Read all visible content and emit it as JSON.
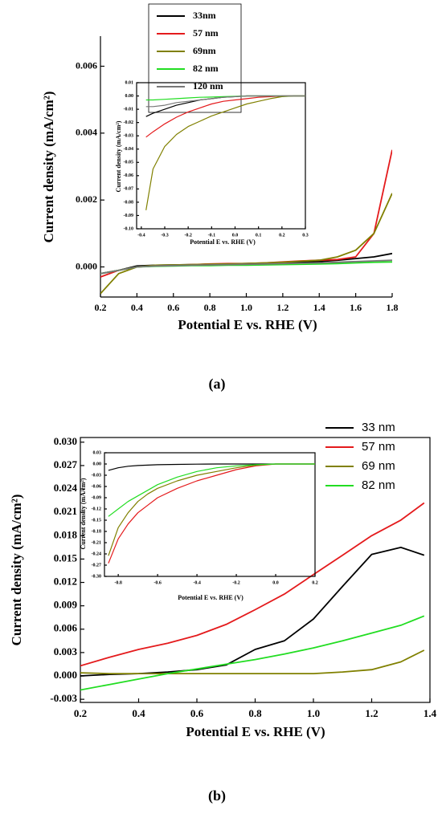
{
  "chart_data": [
    {
      "type": "line",
      "caption": "(a)",
      "xlabel": "Potential E vs. RHE (V)",
      "ylabel": "Current density (mA/cm²)",
      "legend": "upper center",
      "xlim": [
        0.2,
        1.8
      ],
      "ylim": [
        -0.0009,
        0.0069
      ],
      "xticks": [
        0.2,
        0.4,
        0.6,
        0.8,
        {
          "value": 1,
          "label": "1.0"
        },
        1.2,
        1.4,
        1.6,
        1.8
      ],
      "yticks": [
        {
          "value": 0,
          "label": "0.000"
        },
        0.002,
        0.004,
        0.006
      ],
      "x": [
        0.2,
        0.3,
        0.4,
        0.5,
        0.6,
        0.7,
        0.8,
        0.9,
        1.0,
        1.1,
        1.2,
        1.3,
        1.4,
        1.5,
        1.6,
        1.7,
        1.8
      ],
      "series": [
        {
          "name": "33nm",
          "color": "#000000",
          "values": [
            -0.0002,
            -0.0001,
            3e-05,
            5e-05,
            6e-05,
            7e-05,
            8e-05,
            9e-05,
            0.0001,
            0.00011,
            0.00012,
            0.00014,
            0.00016,
            0.0002,
            0.00025,
            0.0003,
            0.0004
          ]
        },
        {
          "name": "57 nm",
          "color": "#e41a1c",
          "values": [
            -0.0003,
            -0.0001,
            0.0,
            3e-05,
            5e-05,
            7e-05,
            9e-05,
            0.0001,
            0.0001,
            0.00012,
            0.00015,
            0.00018,
            0.0002,
            0.00022,
            0.0003,
            0.001,
            0.0035
          ]
        },
        {
          "name": "69nm",
          "color": "#808000",
          "values": [
            -0.0008,
            -0.0002,
            0.0,
            5e-05,
            6e-05,
            7e-05,
            8e-05,
            9e-05,
            0.0001,
            0.00012,
            0.00014,
            0.00017,
            0.0002,
            0.0003,
            0.0005,
            0.001,
            0.0022
          ]
        },
        {
          "name": "82 nm",
          "color": "#22dd22",
          "values": [
            -0.0002,
            -0.0001,
            0.0,
            2e-05,
            3e-05,
            4e-05,
            4e-05,
            5e-05,
            5e-05,
            6e-05,
            7e-05,
            8e-05,
            9e-05,
            0.0001,
            0.00012,
            0.00014,
            0.00015
          ]
        },
        {
          "name": "120 nm",
          "color": "#777777",
          "values": [
            -0.0002,
            -0.0001,
            0.0,
            3e-05,
            4e-05,
            5e-05,
            6e-05,
            7e-05,
            8e-05,
            9e-05,
            0.0001,
            0.00011,
            0.00012,
            0.00014,
            0.00016,
            0.00018,
            0.0002
          ]
        }
      ]
    },
    {
      "type": "line",
      "xlabel": "Potential E vs. RHE (V)",
      "ylabel": "Current density (mA/cm²)",
      "xlim": [
        -0.42,
        0.3
      ],
      "ylim": [
        -0.1,
        0.01
      ],
      "xticks": [
        -0.4,
        -0.3,
        -0.2,
        -0.1,
        {
          "value": 0,
          "label": "0.0"
        },
        0.1,
        0.2,
        0.3
      ],
      "yticks": [
        0.01,
        {
          "value": 0,
          "label": "0.00"
        },
        -0.01,
        -0.02,
        -0.03,
        -0.04,
        -0.05,
        -0.06,
        -0.07,
        -0.08,
        -0.09,
        {
          "value": -0.1,
          "label": "-0.10"
        }
      ],
      "x": [
        -0.38,
        -0.35,
        -0.3,
        -0.25,
        -0.2,
        -0.15,
        -0.1,
        -0.05,
        0,
        0.05,
        0.1,
        0.15,
        0.2,
        0.25,
        0.3
      ],
      "series": [
        {
          "color": "#000000",
          "values": [
            -0.0155,
            -0.013,
            -0.01,
            -0.007,
            -0.005,
            -0.003,
            -0.002,
            -0.001,
            -0.0005,
            0,
            0,
            0,
            0,
            0,
            0
          ]
        },
        {
          "color": "#e41a1c",
          "values": [
            -0.031,
            -0.027,
            -0.021,
            -0.016,
            -0.012,
            -0.009,
            -0.006,
            -0.004,
            -0.003,
            -0.002,
            -0.001,
            -0.0005,
            0,
            0,
            0
          ]
        },
        {
          "color": "#808000",
          "values": [
            -0.086,
            -0.055,
            -0.038,
            -0.029,
            -0.023,
            -0.019,
            -0.015,
            -0.012,
            -0.009,
            -0.006,
            -0.004,
            -0.002,
            -0.0005,
            0,
            0
          ]
        },
        {
          "color": "#22dd22",
          "values": [
            -0.003,
            -0.003,
            -0.0025,
            -0.002,
            -0.0015,
            -0.001,
            -0.0008,
            -0.0005,
            -0.0003,
            0,
            0,
            0,
            0,
            0,
            0
          ]
        },
        {
          "color": "#777777",
          "values": [
            -0.008,
            -0.008,
            -0.007,
            -0.005,
            -0.004,
            -0.003,
            -0.002,
            -0.001,
            -0.0005,
            0,
            0,
            0,
            0,
            0,
            0
          ]
        }
      ]
    },
    {
      "type": "line",
      "caption": "(b)",
      "xlabel": "Potential E vs. RHE (V)",
      "ylabel": "Current density (mA/cm²)",
      "legend": "upper right",
      "xlim": [
        0.2,
        1.4
      ],
      "ylim": [
        -0.0034,
        0.0306
      ],
      "xticks": [
        0.2,
        0.4,
        0.6,
        0.8,
        {
          "value": 1,
          "label": "1.0"
        },
        1.2,
        1.4
      ],
      "yticks": [
        {
          "value": -0.003,
          "label": "-0.003"
        },
        {
          "value": 0,
          "label": "0.000"
        },
        0.003,
        0.006,
        0.009,
        0.012,
        0.015,
        0.018,
        0.021,
        0.024,
        0.027,
        {
          "value": 0.03,
          "label": "0.030"
        }
      ],
      "x": [
        0.2,
        0.3,
        0.4,
        0.5,
        0.6,
        0.7,
        0.8,
        0.9,
        1.0,
        1.1,
        1.2,
        1.3,
        1.38
      ],
      "series": [
        {
          "name": "33 nm",
          "color": "#000000",
          "values": [
            0.0,
            0.0002,
            0.0003,
            0.0005,
            0.0008,
            0.0014,
            0.0034,
            0.0045,
            0.0073,
            0.0115,
            0.0156,
            0.0165,
            0.0155
          ]
        },
        {
          "name": "57 nm",
          "color": "#e41a1c",
          "values": [
            0.0013,
            0.0024,
            0.0034,
            0.0042,
            0.0052,
            0.0066,
            0.0085,
            0.0105,
            0.013,
            0.0155,
            0.018,
            0.02,
            0.0222
          ]
        },
        {
          "name": "69 nm",
          "color": "#808000",
          "values": [
            0.0004,
            0.0003,
            0.0003,
            0.0003,
            0.0003,
            0.0003,
            0.0003,
            0.0003,
            0.0003,
            0.0005,
            0.0008,
            0.0018,
            0.0033
          ]
        },
        {
          "name": "82 nm",
          "color": "#22dd22",
          "values": [
            -0.0018,
            -0.0011,
            -0.0004,
            0.0003,
            0.0009,
            0.0015,
            0.0021,
            0.0028,
            0.0036,
            0.0045,
            0.0055,
            0.0065,
            0.0077
          ]
        }
      ]
    },
    {
      "type": "line",
      "xlabel": "Potential E vs. RHE (V)",
      "ylabel": "Current density (mA/cm²)",
      "xlim": [
        -0.87,
        0.2
      ],
      "ylim": [
        -0.3,
        0.03
      ],
      "xticks": [
        -0.8,
        -0.6,
        -0.4,
        -0.2,
        {
          "value": 0,
          "label": "0.0"
        },
        0.2
      ],
      "yticks": [
        0.03,
        {
          "value": 0,
          "label": "0.00"
        },
        -0.03,
        -0.06,
        -0.09,
        -0.12,
        -0.15,
        -0.18,
        -0.21,
        -0.24,
        -0.27,
        {
          "value": -0.3,
          "label": "-0.30"
        }
      ],
      "x": [
        -0.85,
        -0.8,
        -0.75,
        -0.7,
        -0.65,
        -0.6,
        -0.5,
        -0.4,
        -0.3,
        -0.2,
        -0.1,
        0,
        0.1,
        0.2
      ],
      "series": [
        {
          "color": "#000000",
          "values": [
            -0.017,
            -0.01,
            -0.006,
            -0.004,
            -0.003,
            -0.002,
            -0.001,
            -0.0005,
            0,
            0,
            0,
            0,
            0,
            0
          ]
        },
        {
          "color": "#e41a1c",
          "values": [
            -0.265,
            -0.2,
            -0.16,
            -0.13,
            -0.11,
            -0.09,
            -0.065,
            -0.045,
            -0.03,
            -0.015,
            -0.005,
            0,
            0,
            0
          ]
        },
        {
          "color": "#808000",
          "values": [
            -0.245,
            -0.17,
            -0.13,
            -0.1,
            -0.08,
            -0.065,
            -0.045,
            -0.03,
            -0.02,
            -0.01,
            -0.003,
            0,
            0,
            0
          ]
        },
        {
          "color": "#22dd22",
          "values": [
            -0.14,
            -0.12,
            -0.1,
            -0.085,
            -0.07,
            -0.055,
            -0.035,
            -0.02,
            -0.01,
            -0.005,
            -0.002,
            0,
            0,
            0
          ]
        }
      ]
    }
  ]
}
